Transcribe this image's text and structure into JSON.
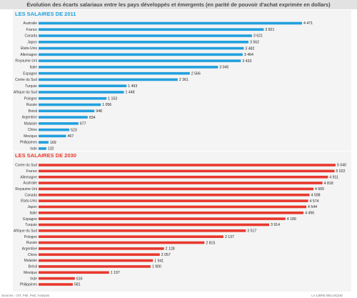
{
  "header": {
    "title": "Évolution des écarts salariaux entre les pays développés et émergents (en parité de pouvoir d'achat exprimée en dollars)"
  },
  "colors": {
    "panel_2011": "#22a0de",
    "panel_2030": "#e8392e",
    "panel_bg": "#f4f4f4",
    "title_bg": "#e2e2e2"
  },
  "chart_data": [
    {
      "type": "bar",
      "orientation": "horizontal",
      "title": "LES SALAIRES DE 2011",
      "categories": [
        "Australie",
        "France",
        "Canada",
        "Japon",
        "Etats-Unis",
        "Allemagne",
        "Royaume-Uni",
        "Italie",
        "Espagne",
        "Corée du Sud",
        "Turquie",
        "Afrique du Sud",
        "Pologne",
        "Russie",
        "Brésil",
        "Argentine",
        "Malaisie",
        "Chine",
        "Mexique",
        "Philippines",
        "Inde"
      ],
      "values": [
        4471,
        3821,
        3621,
        3562,
        3482,
        3464,
        3433,
        3045,
        2566,
        2361,
        1493,
        1448,
        1153,
        1056,
        948,
        834,
        677,
        523,
        467,
        169,
        132
      ],
      "value_labels": [
        "4 471",
        "3 821",
        "3 621",
        "3 562",
        "3 482",
        "3 464",
        "3 433",
        "3 045",
        "2 566",
        "2 361",
        "1 493",
        "1 448",
        "1 153",
        "1 056",
        "948",
        "834",
        "677",
        "523",
        "467",
        "169",
        "132"
      ],
      "xlim": [
        0,
        5040
      ]
    },
    {
      "type": "bar",
      "orientation": "horizontal",
      "title": "LES SALAIRES DE 2030",
      "categories": [
        "Corée du Sud",
        "France",
        "Allemagne",
        "Australie",
        "Royaume-Uni",
        "Canada",
        "Etats-Unis",
        "Japon",
        "Italie",
        "Espagne",
        "Turquie",
        "Afrique du Sud",
        "Pologne",
        "Russie",
        "Argentine",
        "Chine",
        "Malaisie",
        "Brésil",
        "Mexique",
        "Inde",
        "Philippines"
      ],
      "values": [
        5040,
        5022,
        4911,
        4818,
        4665,
        4598,
        4574,
        4544,
        4496,
        4189,
        3914,
        3517,
        3137,
        2815,
        2128,
        2057,
        1941,
        1900,
        1197,
        616,
        581
      ],
      "value_labels": [
        "5 040",
        "5 022",
        "4 911",
        "4 818",
        "4 665",
        "4 598",
        "4 574",
        "4 544",
        "4 496",
        "4 189",
        "3 914",
        "3 517",
        "3 137",
        "2 815",
        "2 128",
        "2 057",
        "1 941",
        "1 900",
        "1 197",
        "616",
        "581"
      ],
      "xlim": [
        0,
        5040
      ]
    }
  ],
  "footer": {
    "source": "Sources : OIT, FMI, PwC Analysis",
    "credit": "LA LIBRE BELGIQUE"
  }
}
